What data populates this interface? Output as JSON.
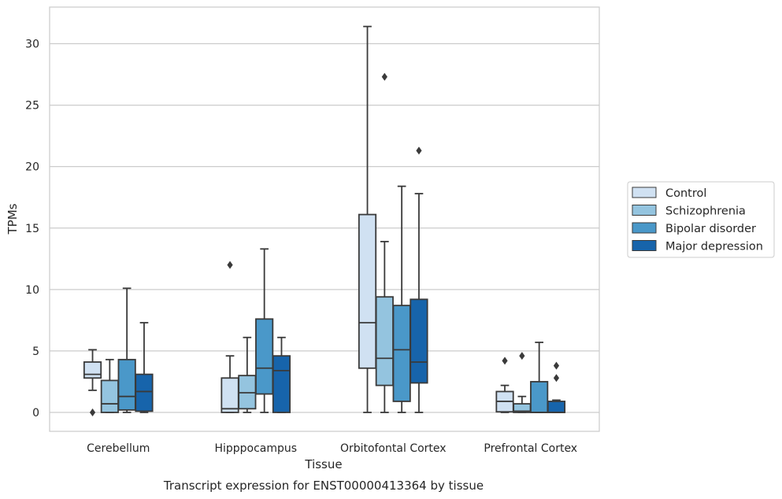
{
  "caption": "Transcript expression for ENST00000413364 by tissue",
  "chart_data": {
    "type": "box",
    "title": "",
    "xlabel": "Tissue",
    "ylabel": "TPMs",
    "ylim": [
      -1.5,
      33
    ],
    "yticks": [
      0,
      5,
      10,
      15,
      20,
      25,
      30
    ],
    "grid": "horizontal",
    "legend_position": "right",
    "categories": [
      "Cerebellum",
      "Hipppocampus",
      "Orbitofontal Cortex",
      "Prefrontal Cortex"
    ],
    "series": [
      {
        "name": "Control",
        "color": "#d0e1f2",
        "boxes": [
          {
            "q1": 2.8,
            "median": 3.1,
            "q3": 4.1,
            "whislo": 1.8,
            "whishi": 5.1,
            "fliers": [
              0.0
            ]
          },
          {
            "q1": 0.0,
            "median": 0.3,
            "q3": 2.8,
            "whislo": 0.0,
            "whishi": 4.6,
            "fliers": [
              12.0
            ]
          },
          {
            "q1": 3.6,
            "median": 7.3,
            "q3": 16.1,
            "whislo": 0.0,
            "whishi": 31.4,
            "fliers": []
          },
          {
            "q1": 0.05,
            "median": 0.9,
            "q3": 1.7,
            "whislo": 0.0,
            "whishi": 2.2,
            "fliers": [
              4.2
            ]
          }
        ]
      },
      {
        "name": "Schizophrenia",
        "color": "#94c4df",
        "boxes": [
          {
            "q1": 0.0,
            "median": 0.7,
            "q3": 2.6,
            "whislo": 0.0,
            "whishi": 4.3,
            "fliers": []
          },
          {
            "q1": 0.3,
            "median": 1.6,
            "q3": 3.0,
            "whislo": 0.0,
            "whishi": 6.1,
            "fliers": []
          },
          {
            "q1": 2.2,
            "median": 4.4,
            "q3": 9.4,
            "whislo": 0.0,
            "whishi": 13.9,
            "fliers": [
              27.3
            ]
          },
          {
            "q1": 0.0,
            "median": 0.1,
            "q3": 0.7,
            "whislo": 0.0,
            "whishi": 1.3,
            "fliers": [
              4.6
            ]
          }
        ]
      },
      {
        "name": "Bipolar disorder",
        "color": "#4a98c9",
        "boxes": [
          {
            "q1": 0.2,
            "median": 1.3,
            "q3": 4.3,
            "whislo": 0.0,
            "whishi": 10.1,
            "fliers": []
          },
          {
            "q1": 1.5,
            "median": 3.6,
            "q3": 7.6,
            "whislo": 0.0,
            "whishi": 13.3,
            "fliers": []
          },
          {
            "q1": 0.9,
            "median": 5.1,
            "q3": 8.7,
            "whislo": 0.0,
            "whishi": 18.4,
            "fliers": []
          },
          {
            "q1": 0.0,
            "median": 0.0,
            "q3": 2.5,
            "whislo": 0.0,
            "whishi": 5.7,
            "fliers": []
          }
        ]
      },
      {
        "name": "Major depression",
        "color": "#1764ab",
        "boxes": [
          {
            "q1": 0.1,
            "median": 1.7,
            "q3": 3.1,
            "whislo": 0.0,
            "whishi": 7.3,
            "fliers": []
          },
          {
            "q1": 0.0,
            "median": 3.4,
            "q3": 4.6,
            "whislo": 0.0,
            "whishi": 6.1,
            "fliers": []
          },
          {
            "q1": 2.4,
            "median": 4.1,
            "q3": 9.2,
            "whislo": 0.0,
            "whishi": 17.8,
            "fliers": [
              21.3
            ]
          },
          {
            "q1": 0.0,
            "median": 0.0,
            "q3": 0.9,
            "whislo": 0.0,
            "whishi": 1.0,
            "fliers": [
              2.8,
              3.8
            ]
          }
        ]
      }
    ]
  }
}
